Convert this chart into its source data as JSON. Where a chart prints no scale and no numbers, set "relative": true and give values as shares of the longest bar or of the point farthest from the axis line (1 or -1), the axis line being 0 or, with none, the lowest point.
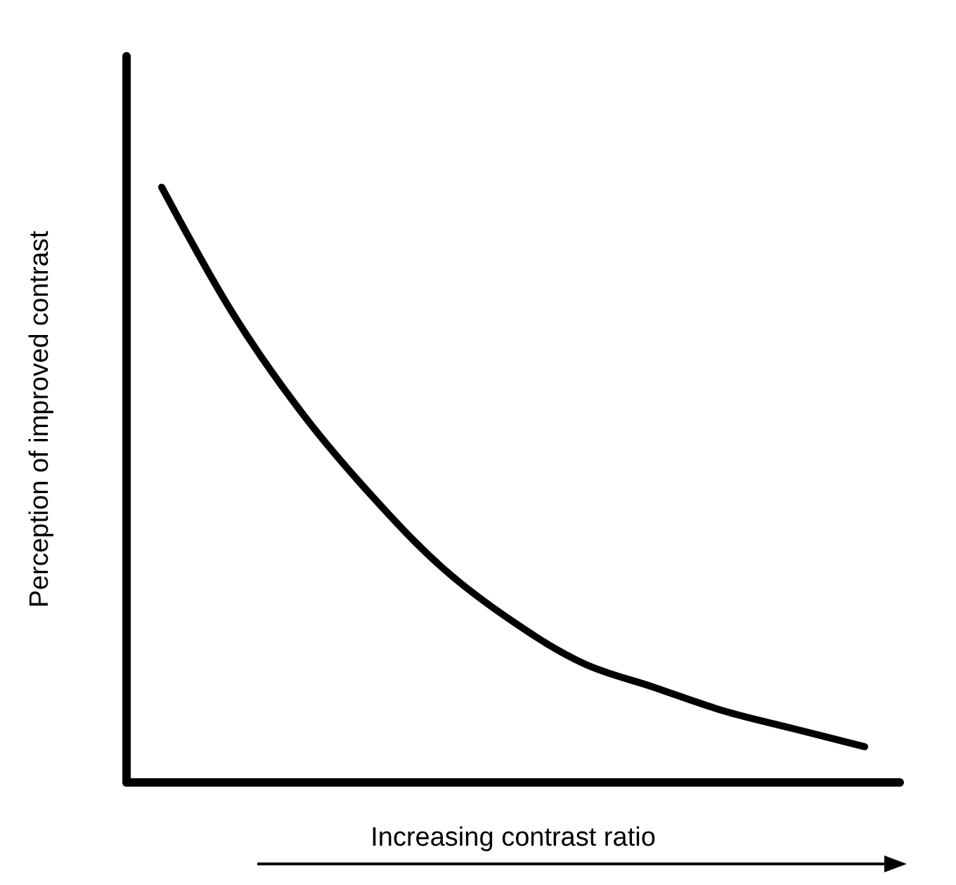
{
  "chart_data": {
    "type": "line",
    "relative": true,
    "xlabel": "Increasing contrast ratio",
    "ylabel": "Perception of improved contrast",
    "categories": [
      null,
      null,
      null,
      null,
      null,
      null,
      null,
      null,
      null,
      null,
      null
    ],
    "series": [
      {
        "color": "#000000",
        "values": [
          1,
          0.79,
          0.62,
          0.48,
          0.36,
          0.27,
          0.2,
          0.16,
          0.12,
          0.09,
          0.06
        ]
      }
    ],
    "marker": "none",
    "line_style": "solid",
    "grid": false
  }
}
